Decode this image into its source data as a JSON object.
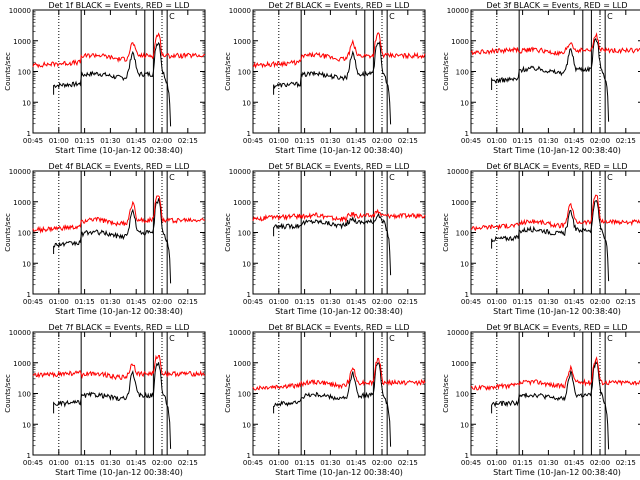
{
  "chart_data": [
    {
      "type": "line",
      "title": "Det 1f BLACK = Events, RED = LLD",
      "xlabel": "Start Time (10-Jan-12 00:38:40)",
      "ylabel": "Counts/sec",
      "yscale": "log",
      "ylim": [
        1,
        10000
      ],
      "xlim": [
        0,
        100
      ],
      "x_ticks": [
        0,
        15,
        30,
        45,
        60,
        75,
        90
      ],
      "x_tick_labels": [
        "00:45",
        "01:00",
        "01:15",
        "01:30",
        "01:45",
        "02:00",
        "02:15"
      ],
      "y_ticks": [
        1,
        10,
        100,
        1000,
        10000
      ],
      "y_tick_labels": [
        "1",
        "10",
        "100",
        "1000",
        "10000"
      ],
      "dotted_lines_at": [
        15,
        75
      ],
      "solid_lines_at": [
        28,
        65,
        70,
        78
      ],
      "marker": "C",
      "series": [
        {
          "name": "Events",
          "color": "#000000",
          "level_start": 35,
          "level_mid": 75,
          "flare_peak": 900
        },
        {
          "name": "LLD",
          "color": "#ff0000",
          "level_start": 160,
          "level_mid": 300,
          "flare_peak": 1600
        }
      ]
    },
    {
      "type": "line",
      "title": "Det 2f BLACK = Events, RED = LLD",
      "xlabel": "Start Time (10-Jan-12 00:38:40)",
      "ylabel": "Counts/sec",
      "yscale": "log",
      "ylim": [
        1,
        10000
      ],
      "xlim": [
        0,
        100
      ],
      "x_ticks": [
        0,
        15,
        30,
        45,
        60,
        75,
        90
      ],
      "x_tick_labels": [
        "00:45",
        "01:00",
        "01:15",
        "01:30",
        "01:45",
        "02:00",
        "02:15"
      ],
      "y_ticks": [
        1,
        10,
        100,
        1000,
        10000
      ],
      "y_tick_labels": [
        "1",
        "10",
        "100",
        "1000",
        "10000"
      ],
      "dotted_lines_at": [
        15,
        75
      ],
      "solid_lines_at": [
        28,
        65,
        70,
        78
      ],
      "marker": "C",
      "series": [
        {
          "name": "Events",
          "color": "#000000",
          "level_start": 35,
          "level_mid": 75,
          "flare_peak": 900
        },
        {
          "name": "LLD",
          "color": "#ff0000",
          "level_start": 160,
          "level_mid": 300,
          "flare_peak": 1600
        }
      ]
    },
    {
      "type": "line",
      "title": "Det 3f BLACK = Events, RED = LLD",
      "xlabel": "Start Time (10-Jan-12 00:38:40)",
      "ylabel": "Counts/sec",
      "yscale": "log",
      "ylim": [
        1,
        10000
      ],
      "xlim": [
        0,
        100
      ],
      "x_ticks": [
        0,
        15,
        30,
        45,
        60,
        75,
        90
      ],
      "x_tick_labels": [
        "00:45",
        "01:00",
        "01:15",
        "01:30",
        "01:45",
        "02:00",
        "02:15"
      ],
      "y_ticks": [
        1,
        10,
        100,
        1000,
        10000
      ],
      "y_tick_labels": [
        "1",
        "10",
        "100",
        "1000",
        "10000"
      ],
      "dotted_lines_at": [
        15,
        75
      ],
      "solid_lines_at": [
        28,
        65,
        70,
        78
      ],
      "marker": "C",
      "series": [
        {
          "name": "Events",
          "color": "#000000",
          "level_start": 50,
          "level_mid": 110,
          "flare_peak": 1100
        },
        {
          "name": "LLD",
          "color": "#ff0000",
          "level_start": 420,
          "level_mid": 450,
          "flare_peak": 1400
        }
      ]
    },
    {
      "type": "line",
      "title": "Det 4f BLACK = Events, RED = LLD",
      "xlabel": "Start Time (10-Jan-12 00:38:40)",
      "ylabel": "Counts/sec",
      "yscale": "log",
      "ylim": [
        1,
        10000
      ],
      "xlim": [
        0,
        100
      ],
      "x_ticks": [
        0,
        15,
        30,
        45,
        60,
        75,
        90
      ],
      "x_tick_labels": [
        "00:45",
        "01:00",
        "01:15",
        "01:30",
        "01:45",
        "02:00",
        "02:15"
      ],
      "y_ticks": [
        1,
        10,
        100,
        1000,
        10000
      ],
      "y_tick_labels": [
        "1",
        "10",
        "100",
        "1000",
        "10000"
      ],
      "dotted_lines_at": [
        15,
        75
      ],
      "solid_lines_at": [
        28,
        65,
        70,
        78
      ],
      "marker": "C",
      "series": [
        {
          "name": "Events",
          "color": "#000000",
          "level_start": 40,
          "level_mid": 90,
          "flare_peak": 1100
        },
        {
          "name": "LLD",
          "color": "#ff0000",
          "level_start": 120,
          "level_mid": 230,
          "flare_peak": 1800
        }
      ]
    },
    {
      "type": "line",
      "title": "Det 5f BLACK = Events, RED = LLD",
      "xlabel": "Start Time (10-Jan-12 00:38:40)",
      "ylabel": "Counts/sec",
      "yscale": "log",
      "ylim": [
        1,
        10000
      ],
      "xlim": [
        0,
        100
      ],
      "x_ticks": [
        0,
        15,
        30,
        45,
        60,
        75,
        90
      ],
      "x_tick_labels": [
        "00:45",
        "01:00",
        "01:15",
        "01:30",
        "01:45",
        "02:00",
        "02:15"
      ],
      "y_ticks": [
        1,
        10,
        100,
        1000,
        10000
      ],
      "y_tick_labels": [
        "1",
        "10",
        "100",
        "1000",
        "10000"
      ],
      "dotted_lines_at": [
        15,
        75
      ],
      "solid_lines_at": [
        28,
        65,
        70,
        78
      ],
      "marker": "C",
      "series": [
        {
          "name": "Events",
          "color": "#000000",
          "level_start": 150,
          "level_mid": 200,
          "flare_peak": 350
        },
        {
          "name": "LLD",
          "color": "#ff0000",
          "level_start": 280,
          "level_mid": 320,
          "flare_peak": 450
        }
      ]
    },
    {
      "type": "line",
      "title": "Det 6f BLACK = Events, RED = LLD",
      "xlabel": "Start Time (10-Jan-12 00:38:40)",
      "ylabel": "Counts/sec",
      "yscale": "log",
      "ylim": [
        1,
        10000
      ],
      "xlim": [
        0,
        100
      ],
      "x_ticks": [
        0,
        15,
        30,
        45,
        60,
        75,
        90
      ],
      "x_tick_labels": [
        "00:45",
        "01:00",
        "01:15",
        "01:30",
        "01:45",
        "02:00",
        "02:15"
      ],
      "y_ticks": [
        1,
        10,
        100,
        1000,
        10000
      ],
      "y_tick_labels": [
        "1",
        "10",
        "100",
        "1000",
        "10000"
      ],
      "dotted_lines_at": [
        15,
        75
      ],
      "solid_lines_at": [
        28,
        65,
        70,
        78
      ],
      "marker": "C",
      "series": [
        {
          "name": "Events",
          "color": "#000000",
          "level_start": 60,
          "level_mid": 110,
          "flare_peak": 1000
        },
        {
          "name": "LLD",
          "color": "#ff0000",
          "level_start": 140,
          "level_mid": 200,
          "flare_peak": 1700
        }
      ]
    },
    {
      "type": "line",
      "title": "Det 7f BLACK = Events, RED = LLD",
      "xlabel": "Start Time (10-Jan-12 00:38:40)",
      "ylabel": "Counts/sec",
      "yscale": "log",
      "ylim": [
        1,
        10000
      ],
      "xlim": [
        0,
        100
      ],
      "x_ticks": [
        0,
        15,
        30,
        45,
        60,
        75,
        90
      ],
      "x_tick_labels": [
        "00:45",
        "01:00",
        "01:15",
        "01:30",
        "01:45",
        "02:00",
        "02:15"
      ],
      "y_ticks": [
        1,
        10,
        100,
        1000,
        10000
      ],
      "y_tick_labels": [
        "1",
        "10",
        "100",
        "1000",
        "10000"
      ],
      "dotted_lines_at": [
        15,
        75
      ],
      "solid_lines_at": [
        28,
        65,
        70,
        78
      ],
      "marker": "C",
      "series": [
        {
          "name": "Events",
          "color": "#000000",
          "level_start": 45,
          "level_mid": 80,
          "flare_peak": 1000
        },
        {
          "name": "LLD",
          "color": "#ff0000",
          "level_start": 380,
          "level_mid": 400,
          "flare_peak": 1700
        }
      ]
    },
    {
      "type": "line",
      "title": "Det 8f BLACK = Events, RED = LLD",
      "xlabel": "Start Time (10-Jan-12 00:38:40)",
      "ylabel": "Counts/sec",
      "yscale": "log",
      "ylim": [
        1,
        10000
      ],
      "xlim": [
        0,
        100
      ],
      "x_ticks": [
        0,
        15,
        30,
        45,
        60,
        75,
        90
      ],
      "x_tick_labels": [
        "00:45",
        "01:00",
        "01:15",
        "01:30",
        "01:45",
        "02:00",
        "02:15"
      ],
      "y_ticks": [
        1,
        10,
        100,
        1000,
        10000
      ],
      "y_tick_labels": [
        "1",
        "10",
        "100",
        "1000",
        "10000"
      ],
      "dotted_lines_at": [
        15,
        75
      ],
      "solid_lines_at": [
        28,
        65,
        70,
        78
      ],
      "marker": "C",
      "series": [
        {
          "name": "Events",
          "color": "#000000",
          "level_start": 45,
          "level_mid": 80,
          "flare_peak": 1000
        },
        {
          "name": "LLD",
          "color": "#ff0000",
          "level_start": 150,
          "level_mid": 210,
          "flare_peak": 1300
        }
      ]
    },
    {
      "type": "line",
      "title": "Det 9f BLACK = Events, RED = LLD",
      "xlabel": "Start Time (10-Jan-12 00:38:40)",
      "ylabel": "Counts/sec",
      "yscale": "log",
      "ylim": [
        1,
        10000
      ],
      "xlim": [
        0,
        100
      ],
      "x_ticks": [
        0,
        15,
        30,
        45,
        60,
        75,
        90
      ],
      "x_tick_labels": [
        "00:45",
        "01:00",
        "01:15",
        "01:30",
        "01:45",
        "02:00",
        "02:15"
      ],
      "y_ticks": [
        1,
        10,
        100,
        1000,
        10000
      ],
      "y_tick_labels": [
        "1",
        "10",
        "100",
        "1000",
        "10000"
      ],
      "dotted_lines_at": [
        15,
        75
      ],
      "solid_lines_at": [
        28,
        65,
        70,
        78
      ],
      "marker": "C",
      "series": [
        {
          "name": "Events",
          "color": "#000000",
          "level_start": 45,
          "level_mid": 80,
          "flare_peak": 1000
        },
        {
          "name": "LLD",
          "color": "#ff0000",
          "level_start": 150,
          "level_mid": 210,
          "flare_peak": 1300
        }
      ]
    }
  ]
}
